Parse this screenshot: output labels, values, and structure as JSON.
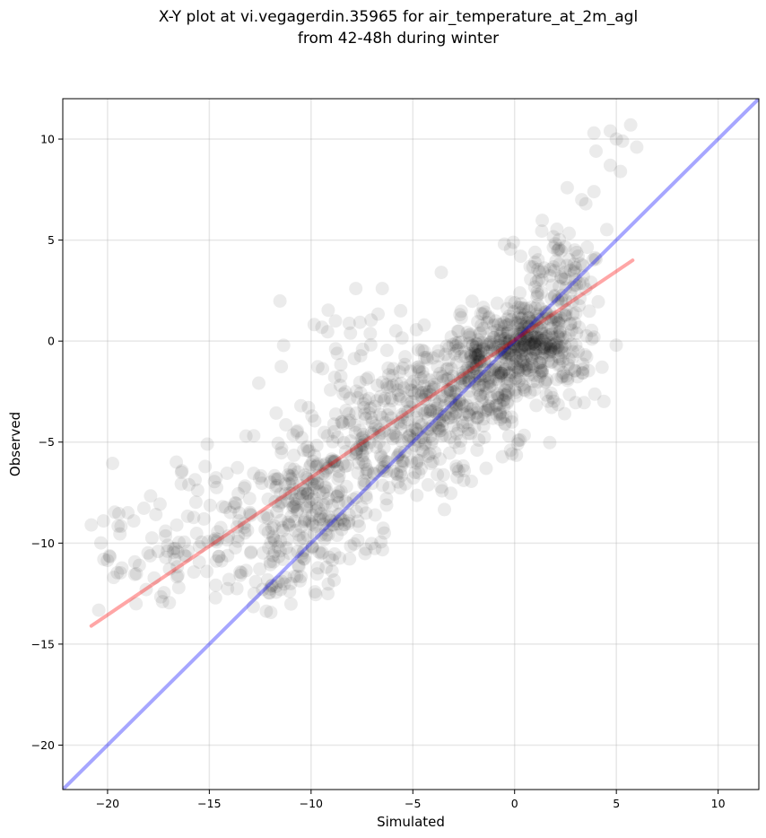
{
  "chart_data": {
    "type": "scatter",
    "title": "X-Y plot at vi.vegagerdin.35965 for air_temperature_at_2m_agl",
    "subtitle": "from 42-48h during winter",
    "xlabel": "Simulated",
    "ylabel": "Observed",
    "xlim": [
      -22.2,
      12.0
    ],
    "ylim": [
      -22.2,
      12.0
    ],
    "xticks": [
      -20,
      -15,
      -10,
      -5,
      0,
      5,
      10
    ],
    "yticks": [
      -20,
      -15,
      -10,
      -5,
      0,
      5,
      10
    ],
    "xtick_labels": [
      "−20",
      "−15",
      "−10",
      "−5",
      "0",
      "5",
      "10"
    ],
    "ytick_labels": [
      "−20",
      "−15",
      "−10",
      "−5",
      "0",
      "5",
      "10"
    ],
    "grid": true,
    "marker_color": "#000000",
    "marker_opacity": 0.08,
    "identity_line": {
      "color": "#0000ff",
      "opacity": 0.35,
      "x": [
        -22.2,
        12.0
      ],
      "y": [
        -22.2,
        12.0
      ]
    },
    "regression_line": {
      "color": "#ff0000",
      "opacity": 0.35,
      "x": [
        -20.8,
        5.8
      ],
      "y": [
        -14.1,
        4.0
      ]
    },
    "clusters": [
      {
        "cx": 0.6,
        "cy": 0.1,
        "sx": 1.3,
        "sy": 0.9,
        "n": 260
      },
      {
        "cx": -1.0,
        "cy": -1.2,
        "sx": 1.5,
        "sy": 1.1,
        "n": 220
      },
      {
        "cx": -3.0,
        "cy": -3.2,
        "sx": 1.8,
        "sy": 1.4,
        "n": 200
      },
      {
        "cx": -5.5,
        "cy": -5.2,
        "sx": 2.0,
        "sy": 1.5,
        "n": 160
      },
      {
        "cx": -9.6,
        "cy": -7.6,
        "sx": 1.6,
        "sy": 1.5,
        "n": 170
      },
      {
        "cx": -13.0,
        "cy": -9.3,
        "sx": 2.4,
        "sy": 1.8,
        "n": 150
      },
      {
        "cx": -17.8,
        "cy": -10.2,
        "sx": 1.4,
        "sy": 1.4,
        "n": 45
      },
      {
        "cx": 2.4,
        "cy": 3.3,
        "sx": 1.0,
        "sy": 1.3,
        "n": 95
      },
      {
        "cx": -7.5,
        "cy": -2.2,
        "sx": 2.0,
        "sy": 1.8,
        "n": 80
      },
      {
        "cx": -10.5,
        "cy": -11.0,
        "sx": 1.4,
        "sy": 1.2,
        "n": 50
      },
      {
        "cx": 2.2,
        "cy": -1.5,
        "sx": 0.9,
        "sy": 1.0,
        "n": 40
      }
    ],
    "extra_points": [
      [
        5.7,
        10.7
      ],
      [
        4.7,
        10.4
      ],
      [
        3.9,
        10.3
      ],
      [
        5.0,
        10.0
      ],
      [
        5.3,
        9.9
      ],
      [
        6.0,
        9.6
      ],
      [
        4.0,
        9.4
      ],
      [
        4.7,
        8.7
      ],
      [
        5.2,
        8.4
      ],
      [
        3.9,
        7.4
      ],
      [
        3.3,
        7.0
      ],
      [
        3.5,
        6.8
      ],
      [
        -20.8,
        -9.1
      ],
      [
        -20.2,
        -8.9
      ],
      [
        -19.0,
        -8.5
      ],
      [
        -19.7,
        -11.7
      ],
      [
        -18.6,
        -13.0
      ],
      [
        -18.1,
        -12.3
      ],
      [
        -17.3,
        -12.9
      ],
      [
        -16.5,
        -12.2
      ],
      [
        -12.8,
        -12.5
      ],
      [
        -11.5,
        -12.3
      ],
      [
        -11.0,
        -12.0
      ],
      [
        -7.3,
        -10.3
      ],
      [
        -6.4,
        -9.5
      ],
      [
        -6.5,
        2.6
      ],
      [
        -7.8,
        2.6
      ],
      [
        -8.8,
        1.0
      ],
      [
        -5.6,
        1.5
      ],
      [
        -3.6,
        3.4
      ],
      [
        -0.5,
        4.8
      ],
      [
        0.3,
        4.2
      ],
      [
        1.0,
        3.9
      ],
      [
        3.8,
        0.1
      ],
      [
        3.9,
        0.2
      ],
      [
        -2.5,
        -6.9
      ],
      [
        -1.4,
        -6.3
      ],
      [
        -0.2,
        -5.4
      ],
      [
        -15.1,
        -5.1
      ],
      [
        -13.2,
        -4.7
      ],
      [
        -10.5,
        -3.2
      ]
    ]
  }
}
